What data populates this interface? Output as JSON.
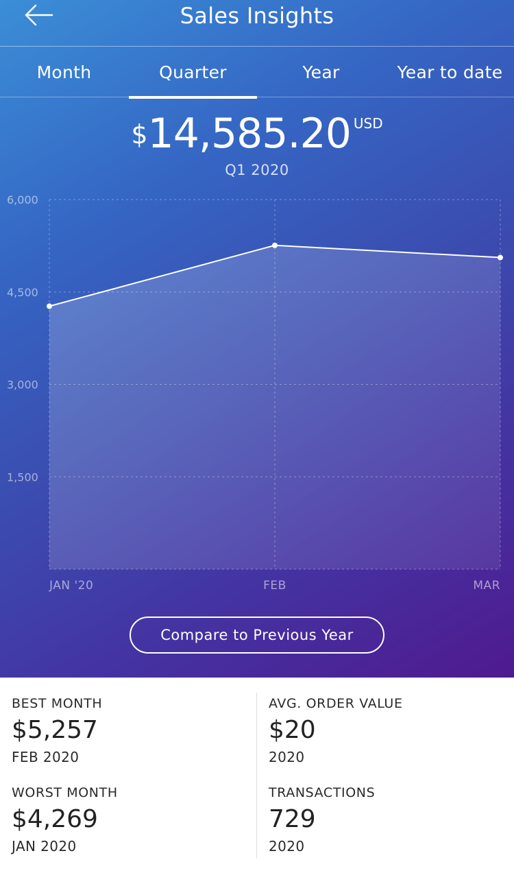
{
  "header": {
    "title": "Sales Insights",
    "back_icon": "arrow-left-icon"
  },
  "tabs": [
    {
      "label": "Month",
      "active": false
    },
    {
      "label": "Quarter",
      "active": true
    },
    {
      "label": "Year",
      "active": false
    },
    {
      "label": "Year to date",
      "active": false
    }
  ],
  "summary": {
    "currency_symbol": "$",
    "amount": "14,585.20",
    "unit": "USD",
    "period": "Q1 2020"
  },
  "chart_data": {
    "type": "line",
    "categories": [
      "JAN '20",
      "FEB",
      "MAR"
    ],
    "values": [
      4269,
      5257,
      5059
    ],
    "ylim": [
      0,
      6000
    ],
    "yticks": [
      "6,000",
      "4,500",
      "3,000",
      "1,500"
    ],
    "ytick_values": [
      6000,
      4500,
      3000,
      1500
    ],
    "grid": true,
    "line_color": "#ffffff"
  },
  "compare_button": {
    "label": "Compare to Previous Year"
  },
  "stats": {
    "best_month": {
      "label": "BEST MONTH",
      "value": "$5,257",
      "sub": "FEB 2020"
    },
    "worst_month": {
      "label": "WORST MONTH",
      "value": "$4,269",
      "sub": "JAN 2020"
    },
    "avg_order": {
      "label": "AVG. ORDER VALUE",
      "value": "$20",
      "sub": "2020"
    },
    "transactions": {
      "label": "TRANSACTIONS",
      "value": "729",
      "sub": "2020"
    }
  }
}
